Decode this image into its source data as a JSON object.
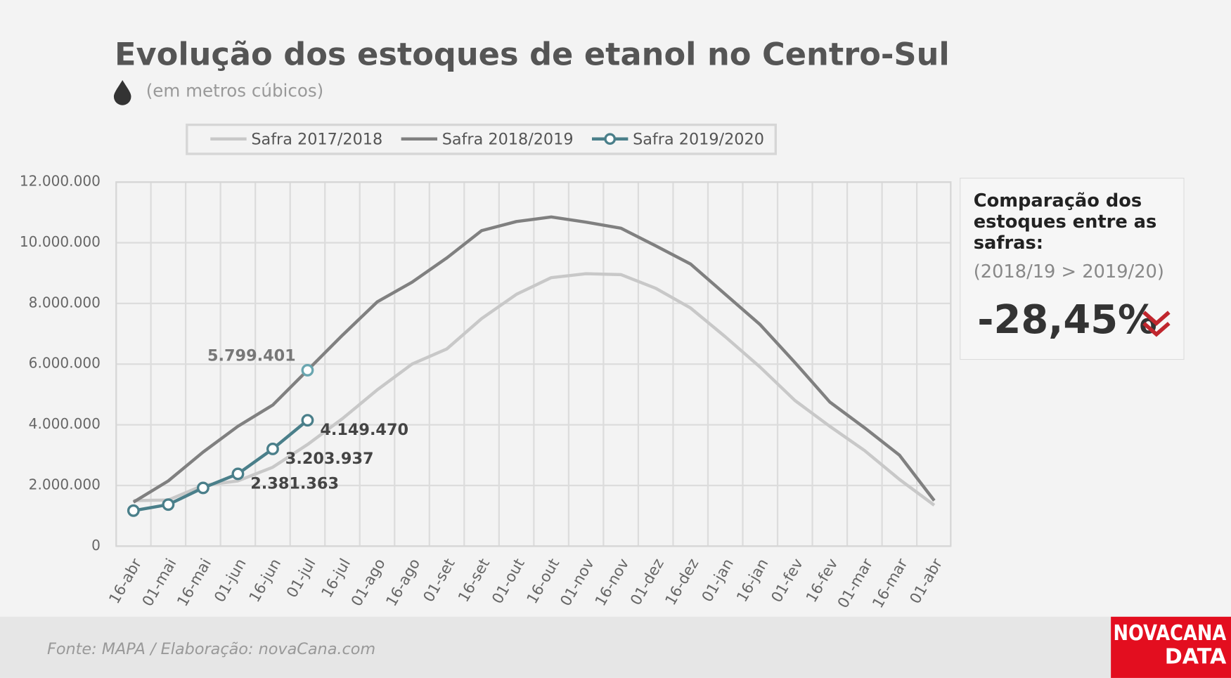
{
  "chart_data": {
    "type": "line",
    "title": "Evolução dos estoques de etanol no Centro-Sul",
    "subtitle": "(em metros cúbicos)",
    "categories": [
      "16-abr",
      "01-mai",
      "16-mai",
      "01-jun",
      "16-jun",
      "01-jul",
      "16-jul",
      "01-ago",
      "16-ago",
      "01-set",
      "16-set",
      "01-out",
      "16-out",
      "01-nov",
      "16-nov",
      "01-dez",
      "16-dez",
      "01-jan",
      "16-jan",
      "01-fev",
      "16-fev",
      "01-mar",
      "16-mar",
      "01-abr"
    ],
    "series": [
      {
        "name": "Safra 2017/2018",
        "color": "#c8c8c8",
        "values": [
          1500000,
          1520000,
          2000000,
          2150000,
          2600000,
          3350000,
          4200000,
          5150000,
          6000000,
          6500000,
          7500000,
          8300000,
          8850000,
          8980000,
          8950000,
          8500000,
          7850000,
          6900000,
          5900000,
          4800000,
          3950000,
          3150000,
          2200000,
          1350000
        ]
      },
      {
        "name": "Safra 2018/2019",
        "color": "#808080",
        "values": [
          1450000,
          2150000,
          3100000,
          3950000,
          4650000,
          5799401,
          6950000,
          8050000,
          8700000,
          9500000,
          10400000,
          10700000,
          10850000,
          10680000,
          10480000,
          9900000,
          9300000,
          8300000,
          7300000,
          6050000,
          4750000,
          3900000,
          3000000,
          1500000
        ],
        "value_labels": [
          null,
          null,
          null,
          null,
          null,
          "5.799.401",
          null,
          null,
          null,
          null,
          null,
          null,
          null,
          null,
          null,
          null,
          null,
          null,
          null,
          null,
          null,
          null,
          null,
          null
        ]
      },
      {
        "name": "Safra 2019/2020",
        "color": "#4a7f8a",
        "values": [
          1170000,
          1370000,
          1920000,
          2381363,
          3203937,
          4149470,
          null,
          null,
          null,
          null,
          null,
          null,
          null,
          null,
          null,
          null,
          null,
          null,
          null,
          null,
          null,
          null,
          null,
          null
        ],
        "value_labels": [
          null,
          null,
          null,
          "2.381.363",
          "3.203.937",
          "4.149.470",
          null,
          null,
          null,
          null,
          null,
          null,
          null,
          null,
          null,
          null,
          null,
          null,
          null,
          null,
          null,
          null,
          null,
          null
        ]
      }
    ],
    "ylim": [
      0,
      12000000
    ],
    "yticks": [
      0,
      {
        "value": 2000000,
        "label": "2.000.000"
      },
      {
        "value": 4000000,
        "label": "4.000.000"
      },
      {
        "value": 6000000,
        "label": "6.000.000"
      },
      {
        "value": 8000000,
        "label": "8.000.000"
      },
      {
        "value": 10000000,
        "label": "10.000.000"
      },
      {
        "value": 12000000,
        "label": "12.000.000"
      }
    ],
    "grid": true,
    "legend": "top",
    "side_box": {
      "heading": "Comparação dos estoques entre as safras:",
      "comparison": "(2018/19 > 2019/20)",
      "change": "-28,45%"
    },
    "source": "Fonte: MAPA  / Elaboração: novaCana.com",
    "logo": [
      "NOVACANA",
      "DATA"
    ]
  }
}
